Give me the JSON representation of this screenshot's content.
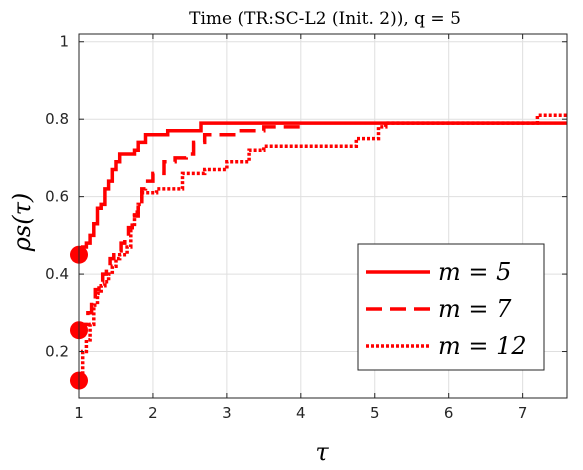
{
  "chart_data": {
    "type": "line",
    "title": "Time (TR:SC-L2 (Init. 2)), q = 5",
    "xlabel": "τ",
    "ylabel": "ρs(τ)",
    "xlim": [
      1,
      7.6
    ],
    "ylim": [
      0.08,
      1.02
    ],
    "xticks": [
      1,
      2,
      3,
      4,
      5,
      6,
      7
    ],
    "yticks": [
      0.2,
      0.4,
      0.6,
      0.8,
      1
    ],
    "ytick_labels": [
      "0.2",
      "0.4",
      "0.6",
      "0.8",
      "1"
    ],
    "grid": true,
    "legend_position": "lower-right",
    "series": [
      {
        "name": "m = 5",
        "style": "solid",
        "color": "#ff0000",
        "start_marker": [
          1.0,
          0.45
        ],
        "points": [
          [
            1.0,
            0.45
          ],
          [
            1.05,
            0.47
          ],
          [
            1.1,
            0.48
          ],
          [
            1.15,
            0.5
          ],
          [
            1.2,
            0.53
          ],
          [
            1.25,
            0.57
          ],
          [
            1.3,
            0.58
          ],
          [
            1.35,
            0.62
          ],
          [
            1.4,
            0.64
          ],
          [
            1.45,
            0.67
          ],
          [
            1.5,
            0.69
          ],
          [
            1.55,
            0.71
          ],
          [
            1.75,
            0.72
          ],
          [
            1.8,
            0.74
          ],
          [
            1.9,
            0.76
          ],
          [
            2.2,
            0.77
          ],
          [
            2.65,
            0.79
          ],
          [
            7.6,
            0.79
          ]
        ]
      },
      {
        "name": "m = 7",
        "style": "dashed",
        "color": "#ff0000",
        "start_marker": [
          1.0,
          0.255
        ],
        "points": [
          [
            1.0,
            0.255
          ],
          [
            1.08,
            0.27
          ],
          [
            1.12,
            0.3
          ],
          [
            1.17,
            0.33
          ],
          [
            1.22,
            0.36
          ],
          [
            1.27,
            0.38
          ],
          [
            1.32,
            0.4
          ],
          [
            1.37,
            0.42
          ],
          [
            1.42,
            0.44
          ],
          [
            1.47,
            0.45
          ],
          [
            1.52,
            0.46
          ],
          [
            1.57,
            0.48
          ],
          [
            1.62,
            0.49
          ],
          [
            1.67,
            0.52
          ],
          [
            1.72,
            0.55
          ],
          [
            1.8,
            0.58
          ],
          [
            1.85,
            0.62
          ],
          [
            1.9,
            0.64
          ],
          [
            2.0,
            0.66
          ],
          [
            2.15,
            0.69
          ],
          [
            2.3,
            0.7
          ],
          [
            2.45,
            0.71
          ],
          [
            2.55,
            0.74
          ],
          [
            2.7,
            0.76
          ],
          [
            3.15,
            0.77
          ],
          [
            3.5,
            0.78
          ],
          [
            4.0,
            0.78
          ]
        ]
      },
      {
        "name": "m = 12",
        "style": "dotted",
        "color": "#ff0000",
        "start_marker": [
          1.0,
          0.125
        ],
        "points": [
          [
            1.0,
            0.125
          ],
          [
            1.05,
            0.2
          ],
          [
            1.1,
            0.23
          ],
          [
            1.15,
            0.27
          ],
          [
            1.2,
            0.32
          ],
          [
            1.25,
            0.35
          ],
          [
            1.3,
            0.37
          ],
          [
            1.35,
            0.38
          ],
          [
            1.4,
            0.4
          ],
          [
            1.45,
            0.42
          ],
          [
            1.5,
            0.44
          ],
          [
            1.55,
            0.45
          ],
          [
            1.65,
            0.47
          ],
          [
            1.7,
            0.52
          ],
          [
            1.75,
            0.56
          ],
          [
            1.8,
            0.58
          ],
          [
            1.85,
            0.61
          ],
          [
            2.05,
            0.62
          ],
          [
            2.4,
            0.64
          ],
          [
            2.4,
            0.66
          ],
          [
            2.7,
            0.67
          ],
          [
            3.0,
            0.69
          ],
          [
            3.3,
            0.72
          ],
          [
            3.5,
            0.73
          ],
          [
            4.0,
            0.73
          ],
          [
            4.75,
            0.75
          ],
          [
            5.05,
            0.78
          ],
          [
            5.15,
            0.79
          ],
          [
            7.2,
            0.79
          ],
          [
            7.2,
            0.81
          ],
          [
            7.6,
            0.81
          ]
        ]
      }
    ]
  }
}
